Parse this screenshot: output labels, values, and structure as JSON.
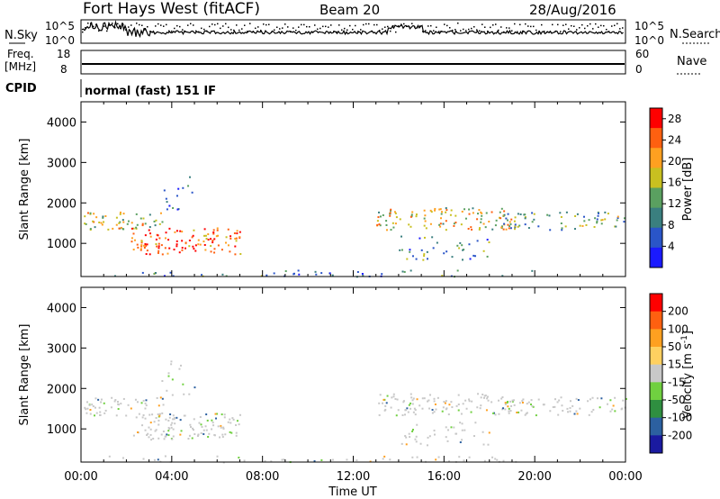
{
  "header": {
    "title": "Fort Hays West (fitACF)",
    "beam": "Beam 20",
    "date": "28/Aug/2016"
  },
  "top_panels": {
    "nsky_label": "N.Sky",
    "nsearch_label": "N.Search",
    "nsky_ticks": [
      "10^5",
      "10^0"
    ],
    "freq_label_1": "Freq.",
    "freq_label_2": "[MHz]",
    "freq_ticks": [
      "18",
      "8"
    ],
    "nave_label": "Nave",
    "nave_ticks": [
      "60",
      "0"
    ],
    "cpid_label": "CPID",
    "cpid_text": "normal (fast) 151 IF"
  },
  "chart_data": [
    {
      "type": "heatmap",
      "name": "power-panel",
      "xlabel": "Time UT",
      "ylabel": "Slant Range [km]",
      "x_ticks": [
        "00:00",
        "04:00",
        "08:00",
        "12:00",
        "16:00",
        "20:00",
        "00:00"
      ],
      "xlim_hours": [
        0,
        24
      ],
      "y_ticks": [
        1000,
        2000,
        3000,
        4000
      ],
      "ylim_km": [
        180,
        4500
      ],
      "colorbar": {
        "label": "Power [dB]",
        "ticks": [
          4,
          8,
          12,
          16,
          20,
          24,
          28
        ],
        "range": [
          0,
          30
        ],
        "colors": [
          "#1a1aff",
          "#2a55c8",
          "#3a7f7f",
          "#5aa060",
          "#c8c020",
          "#ffa020",
          "#ff6010",
          "#ff0000"
        ]
      }
    },
    {
      "type": "heatmap",
      "name": "velocity-panel",
      "xlabel": "Time UT",
      "ylabel": "Slant Range [km]",
      "x_ticks": [
        "00:00",
        "04:00",
        "08:00",
        "12:00",
        "16:00",
        "20:00",
        "00:00"
      ],
      "xlim_hours": [
        0,
        24
      ],
      "y_ticks": [
        1000,
        2000,
        3000,
        4000
      ],
      "ylim_km": [
        180,
        4500
      ],
      "colorbar": {
        "label": "Velocity [m s^-1]",
        "ticks": [
          "200",
          "100",
          "50",
          "15",
          "-15",
          "-50",
          "-100",
          "-200"
        ],
        "colors": [
          "#1a1aa0",
          "#2c60a0",
          "#2f8f40",
          "#70d040",
          "#c8c8c8",
          "#ffd060",
          "#ffa020",
          "#ff6010",
          "#ff0000"
        ]
      }
    }
  ]
}
